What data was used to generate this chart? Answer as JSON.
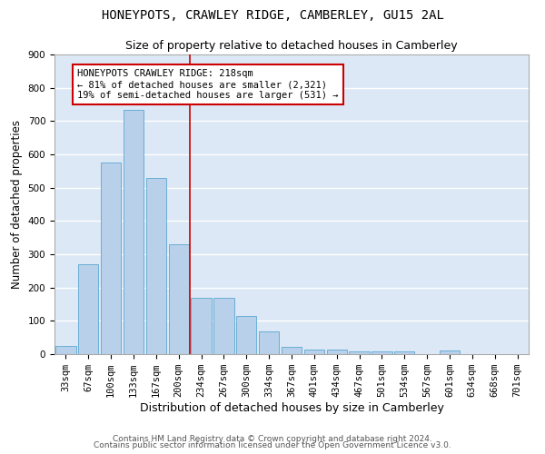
{
  "title": "HONEYPOTS, CRAWLEY RIDGE, CAMBERLEY, GU15 2AL",
  "subtitle": "Size of property relative to detached houses in Camberley",
  "xlabel": "Distribution of detached houses by size in Camberley",
  "ylabel": "Number of detached properties",
  "categories": [
    "33sqm",
    "67sqm",
    "100sqm",
    "133sqm",
    "167sqm",
    "200sqm",
    "234sqm",
    "267sqm",
    "300sqm",
    "334sqm",
    "367sqm",
    "401sqm",
    "434sqm",
    "467sqm",
    "501sqm",
    "534sqm",
    "567sqm",
    "601sqm",
    "634sqm",
    "668sqm",
    "701sqm"
  ],
  "values": [
    25,
    270,
    575,
    735,
    530,
    330,
    170,
    170,
    115,
    68,
    22,
    13,
    13,
    8,
    8,
    8,
    0,
    10,
    0,
    0,
    0
  ],
  "bar_color": "#b8d0ea",
  "bar_edgecolor": "#6baed6",
  "bar_linewidth": 0.7,
  "vline_x_index": 6,
  "vline_color": "#cc0000",
  "vline_linewidth": 1.2,
  "annotation_text": "HONEYPOTS CRAWLEY RIDGE: 218sqm\n← 81% of detached houses are smaller (2,321)\n19% of semi-detached houses are larger (531) →",
  "annotation_box_edgecolor": "#cc0000",
  "annotation_box_facecolor": "#ffffff",
  "ylim": [
    0,
    900
  ],
  "yticks": [
    0,
    100,
    200,
    300,
    400,
    500,
    600,
    700,
    800,
    900
  ],
  "background_color": "#dce8f5",
  "grid_color": "#ffffff",
  "title_fontsize": 10,
  "subtitle_fontsize": 9,
  "xlabel_fontsize": 9,
  "ylabel_fontsize": 8.5,
  "tick_fontsize": 7.5,
  "annotation_fontsize": 7.5,
  "footer_line1": "Contains HM Land Registry data © Crown copyright and database right 2024.",
  "footer_line2": "Contains public sector information licensed under the Open Government Licence v3.0."
}
